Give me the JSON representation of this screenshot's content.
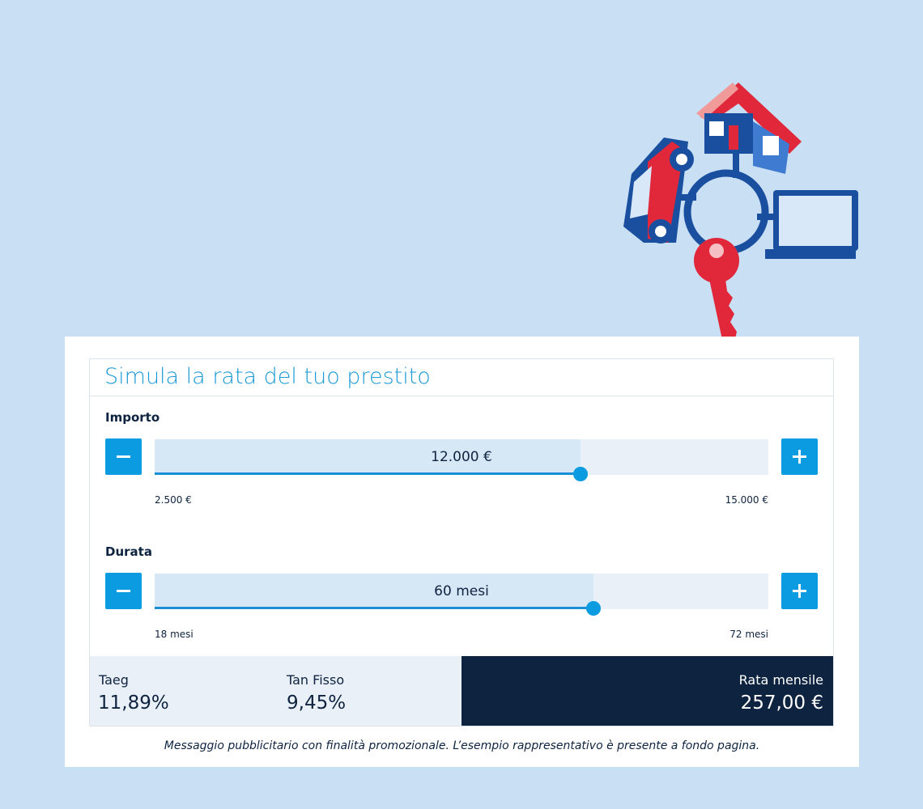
{
  "header": {
    "title": "Simula la rata del tuo prestito"
  },
  "sliders": [
    {
      "label": "Importo",
      "value": "12.000 €",
      "min": "2.500 €",
      "max": "15.000 €"
    },
    {
      "label": "Durata",
      "value": "60 mesi",
      "min": "18 mesi",
      "max": "72 mesi"
    }
  ],
  "results": [
    {
      "label": "Taeg",
      "value": "11,89%"
    },
    {
      "label": "Tan Fisso",
      "value": "9,45%"
    },
    {
      "label": "Rata mensile",
      "value": "257,00 €"
    }
  ],
  "disclaimer": "Messaggio pubblicitario con finalità promozionale. L’esempio rappresentativo è presente a fondo pagina."
}
